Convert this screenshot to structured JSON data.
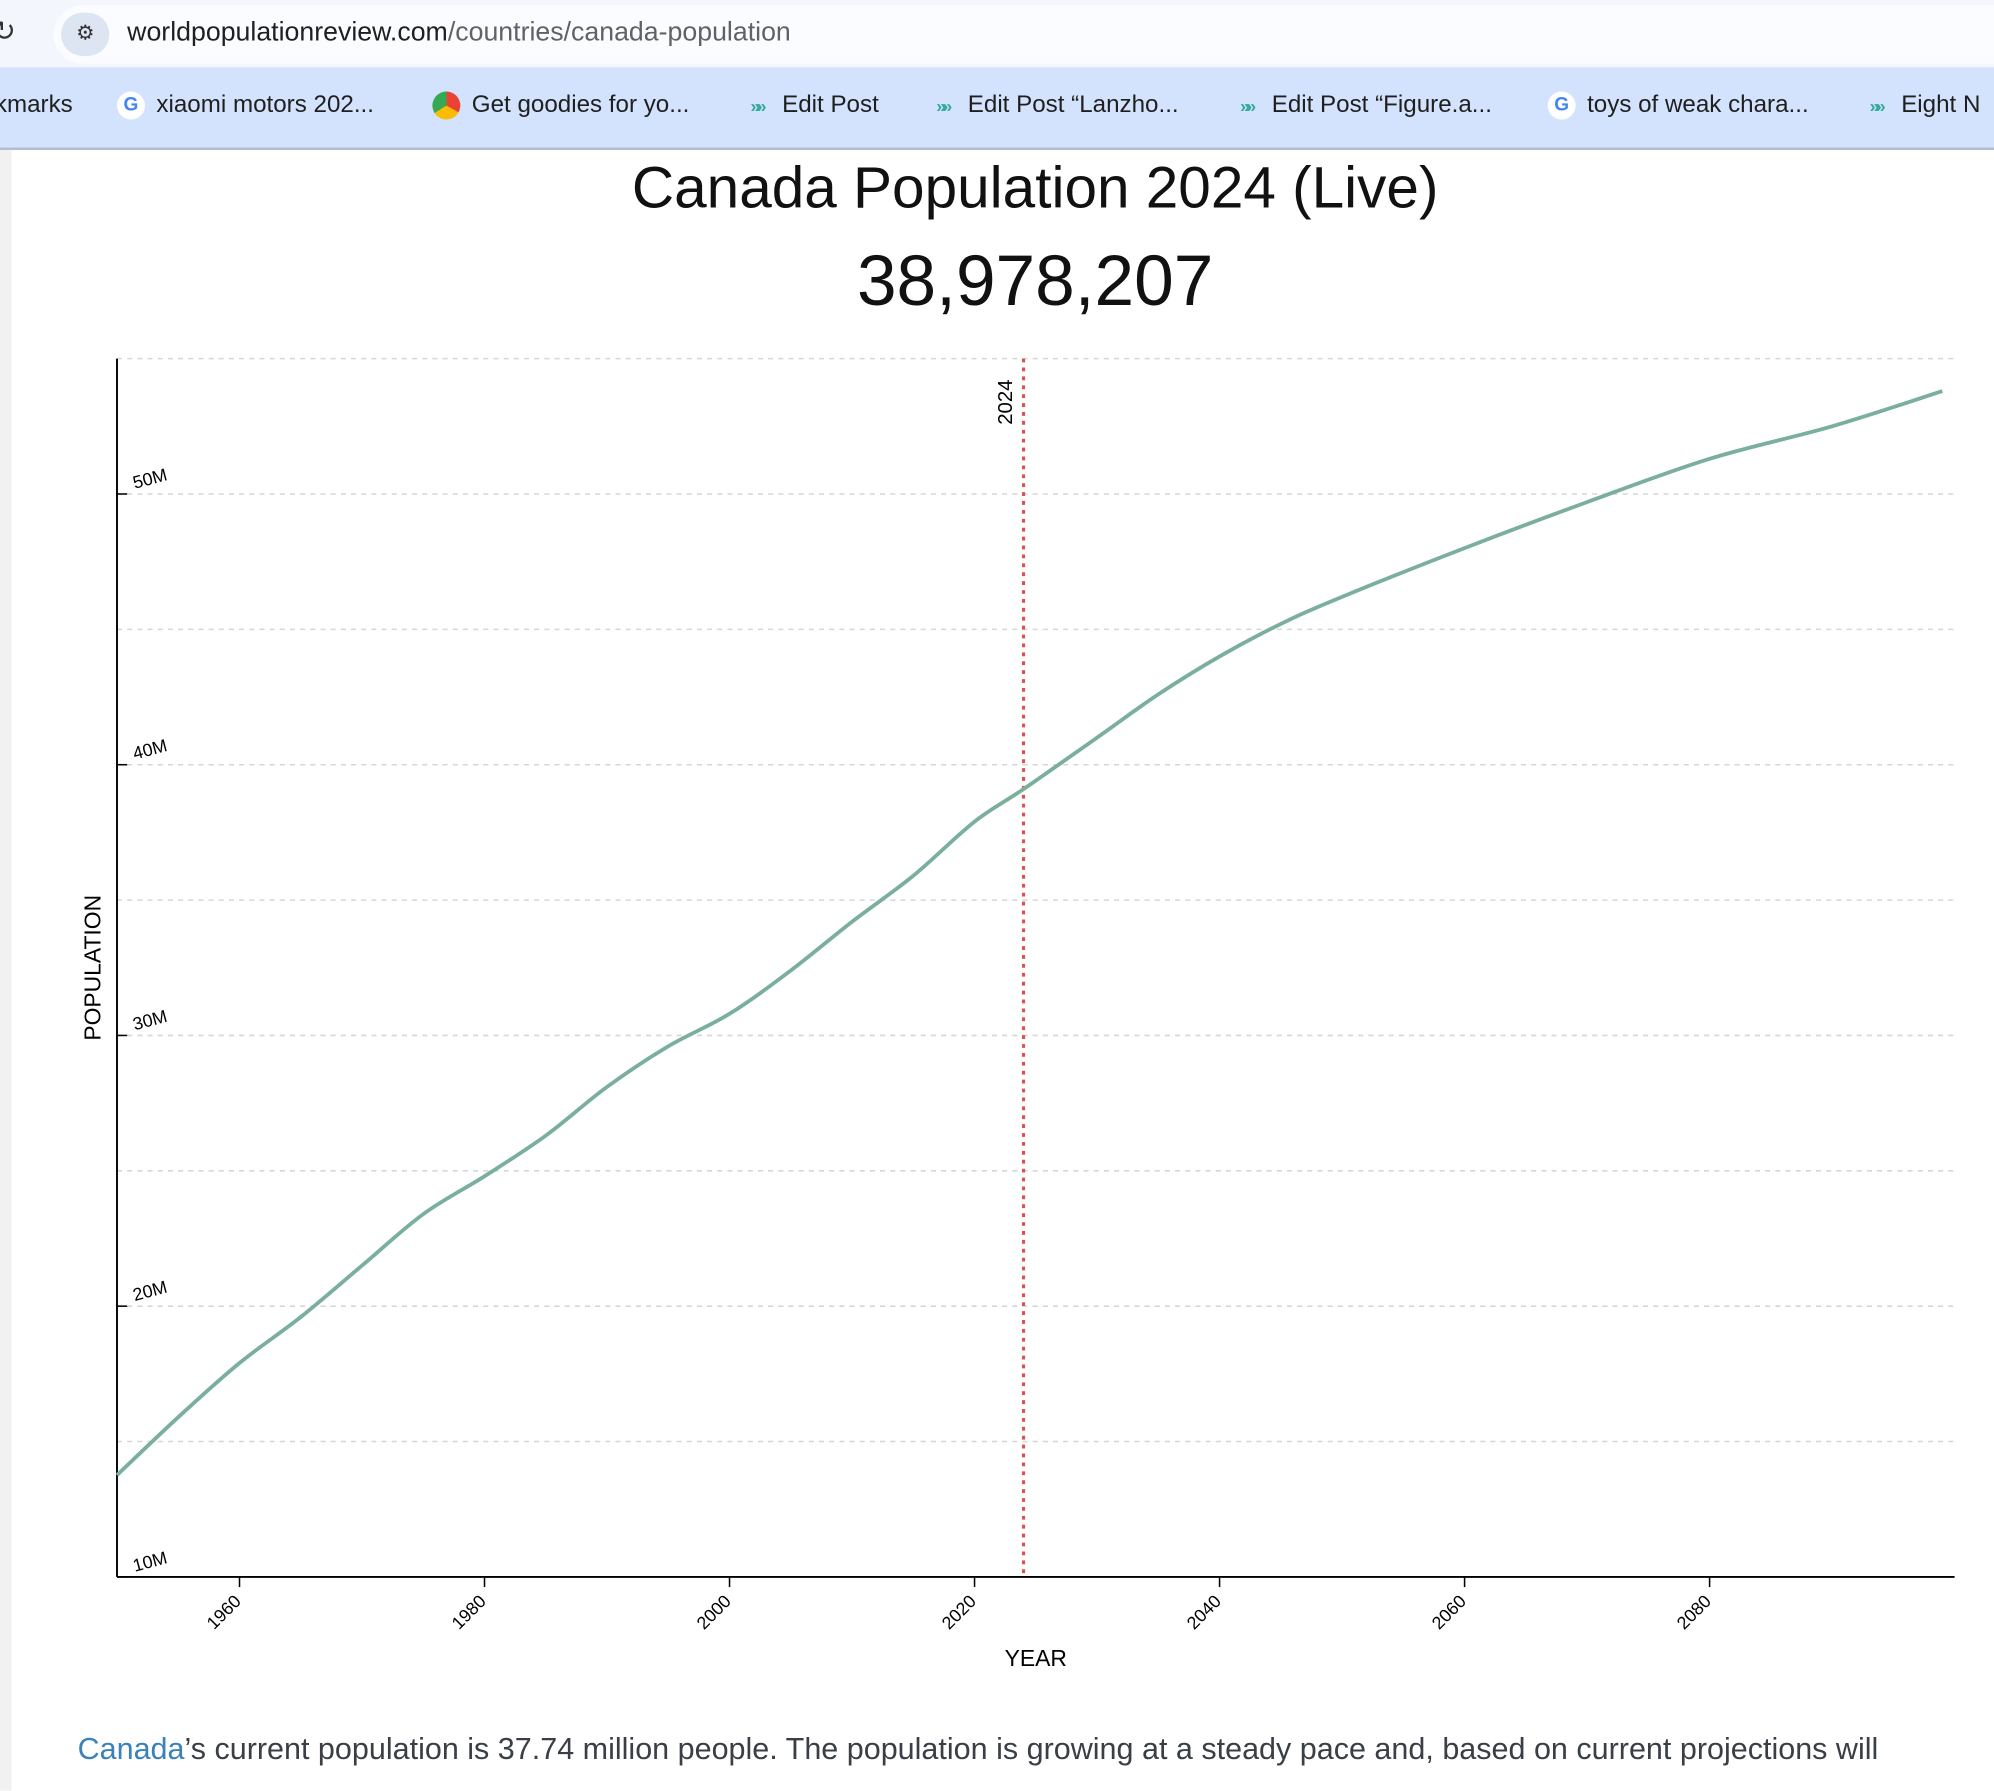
{
  "browser": {
    "url_domain": "worldpopulationreview.com",
    "url_path": "/countries/canada-population",
    "bookmarks": [
      {
        "label": "kmarks",
        "icon": "none"
      },
      {
        "label": "xiaomi motors 202...",
        "icon": "google-icon"
      },
      {
        "label": "Get goodies for yo...",
        "icon": "chrome-icon"
      },
      {
        "label": "Edit Post",
        "icon": "wordpress-arrow-icon"
      },
      {
        "label": "Edit Post “Lanzho...",
        "icon": "wordpress-arrow-icon"
      },
      {
        "label": "Edit Post “Figure.a...",
        "icon": "wordpress-arrow-icon"
      },
      {
        "label": "toys of weak chara...",
        "icon": "google-icon"
      },
      {
        "label": "Eight N",
        "icon": "wordpress-arrow-icon"
      }
    ]
  },
  "page": {
    "title": "Canada Population 2024 (Live)",
    "live_count": "38,978,207",
    "paragraph_link": "Canada",
    "paragraph_text": "’s current population is 37.74 million people. The population is growing at a steady pace and, based on current projections will"
  },
  "chart_data": {
    "type": "line",
    "title": "",
    "xlabel": "YEAR",
    "ylabel": "POPULATION",
    "xlim": [
      1950,
      2100
    ],
    "ylim": [
      10,
      55
    ],
    "y_unit": "millions",
    "x_ticks": [
      1960,
      1980,
      2000,
      2020,
      2040,
      2060,
      2080
    ],
    "y_ticks": [
      {
        "v": 10,
        "label": "10M"
      },
      {
        "v": 20,
        "label": "20M"
      },
      {
        "v": 30,
        "label": "30M"
      },
      {
        "v": 40,
        "label": "40M"
      },
      {
        "v": 50,
        "label": "50M"
      }
    ],
    "gridlines": [
      15,
      20,
      25,
      30,
      35,
      40,
      45,
      50,
      55
    ],
    "grid": "horizontal dashed",
    "marker_line": {
      "x": 2024,
      "label": "2024",
      "color": "#d9534f"
    },
    "line_color": "#7aaf9c",
    "x": [
      1950,
      1955,
      1960,
      1965,
      1970,
      1975,
      1980,
      1985,
      1990,
      1995,
      2000,
      2005,
      2010,
      2015,
      2020,
      2024,
      2030,
      2035,
      2040,
      2045,
      2050,
      2060,
      2070,
      2080,
      2090,
      2099
    ],
    "values": [
      13.76,
      15.9,
      17.9,
      19.6,
      21.5,
      23.4,
      24.8,
      26.3,
      28.1,
      29.6,
      30.8,
      32.4,
      34.2,
      35.9,
      37.9,
      39.1,
      41.0,
      42.6,
      44.0,
      45.2,
      46.2,
      48.0,
      49.7,
      51.3,
      52.5,
      53.8
    ]
  }
}
